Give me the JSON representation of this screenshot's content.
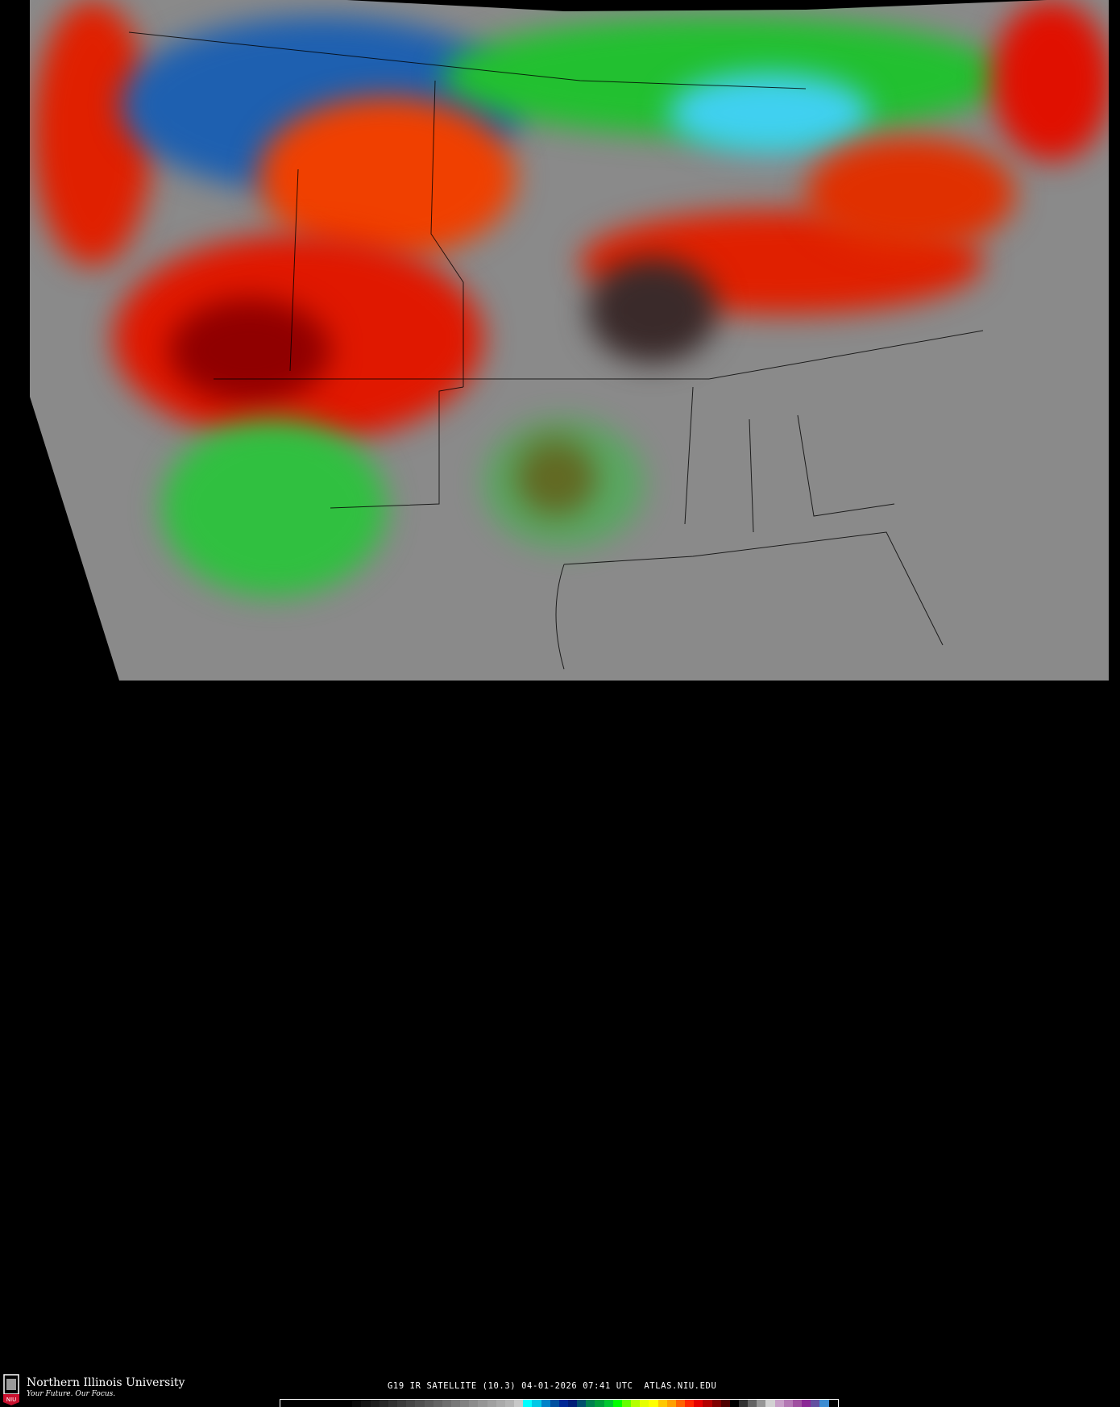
{
  "image": {
    "type": "infrared satellite map",
    "region": "Continental United States"
  },
  "footer": {
    "logo_text": "NIU",
    "university": "Northern Illinois University",
    "tagline": "Your Future. Our Focus.",
    "caption": "G19 IR SATELLITE (10.3) 04-01-2026 07:41 UTC  ATLAS.NIU.EDU"
  },
  "colorbar": [
    "#000000",
    "#000000",
    "#000000",
    "#000000",
    "#000000",
    "#000000",
    "#000000",
    "#000000",
    "#0a0a0a",
    "#141414",
    "#1e1e1e",
    "#282828",
    "#323232",
    "#3c3c3c",
    "#464646",
    "#505050",
    "#5a5a5a",
    "#646464",
    "#6e6e6e",
    "#787878",
    "#828282",
    "#8c8c8c",
    "#969696",
    "#a0a0a0",
    "#aaaaaa",
    "#b4b4b4",
    "#c8c8c8",
    "#00ffff",
    "#00c8e6",
    "#0082c8",
    "#0050a0",
    "#002896",
    "#001e78",
    "#00506e",
    "#008250",
    "#00a03c",
    "#00c832",
    "#00ff00",
    "#64ff00",
    "#b4ff00",
    "#e6ff00",
    "#ffff00",
    "#ffc800",
    "#ffa000",
    "#ff6400",
    "#ff2800",
    "#e60000",
    "#b40000",
    "#800000",
    "#500000",
    "#000000",
    "#323232",
    "#646464",
    "#969696",
    "#d2d2d2",
    "#c8a0c8",
    "#b478b4",
    "#a050a0",
    "#8c2896",
    "#6450a0",
    "#3c8cd2",
    "#000000"
  ]
}
